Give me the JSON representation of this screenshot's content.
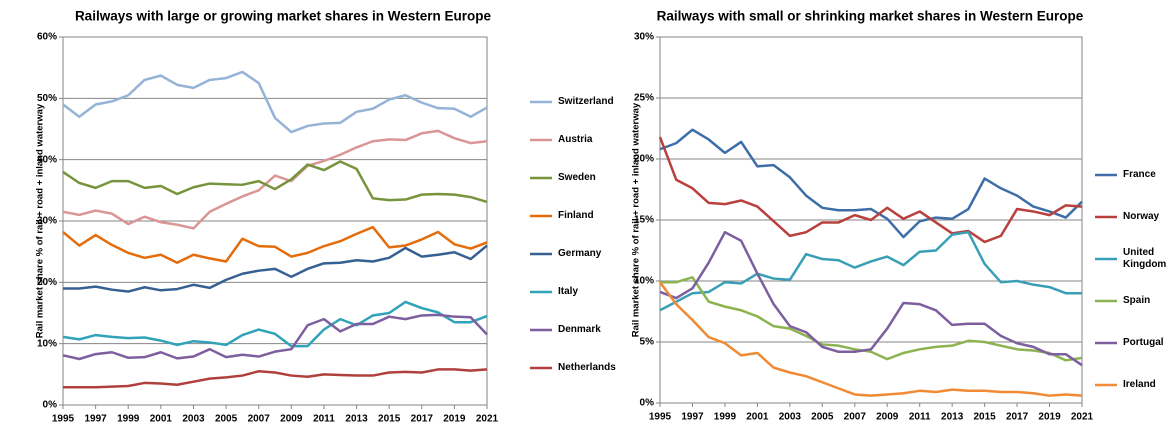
{
  "chart_data": [
    {
      "type": "line",
      "title": "Railways with large or growing market shares in Western Europe",
      "y_label": "Rail market share % of rail + road + inland waterway",
      "x": [
        1995,
        1996,
        1997,
        1998,
        1999,
        2000,
        2001,
        2002,
        2003,
        2004,
        2005,
        2006,
        2007,
        2008,
        2009,
        2010,
        2011,
        2012,
        2013,
        2014,
        2015,
        2016,
        2017,
        2018,
        2019,
        2020,
        2021
      ],
      "xlim": [
        1995,
        2021
      ],
      "xticks": [
        1995,
        1997,
        1999,
        2001,
        2003,
        2005,
        2007,
        2009,
        2011,
        2013,
        2015,
        2017,
        2019,
        2021
      ],
      "ylim": [
        0,
        60
      ],
      "yticks": [
        {
          "value": 0,
          "label": "0%"
        },
        {
          "value": 10,
          "label": "10%"
        },
        {
          "value": 20,
          "label": "20%"
        },
        {
          "value": 30,
          "label": "30%"
        },
        {
          "value": 40,
          "label": "40%"
        },
        {
          "value": 50,
          "label": "50%"
        },
        {
          "value": 60,
          "label": "60%"
        }
      ],
      "grid": true,
      "legend": "right",
      "series": [
        {
          "name": "Switzerland",
          "color": "#95b3d7",
          "values": [
            49,
            47,
            49,
            49.5,
            50.5,
            53,
            53.7,
            52.2,
            51.7,
            53,
            53.3,
            54.3,
            52.5,
            46.8,
            44.5,
            45.5,
            45.9,
            46,
            47.8,
            48.3,
            49.8,
            50.5,
            49.3,
            48.4,
            48.3,
            47,
            48.5
          ]
        },
        {
          "name": "Austria",
          "color": "#d99694",
          "values": [
            31.5,
            31,
            31.7,
            31.2,
            29.5,
            30.7,
            29.8,
            29.4,
            28.8,
            31.5,
            32.8,
            34,
            35,
            37.4,
            36.5,
            39,
            39.8,
            40.8,
            42,
            43,
            43.3,
            43.2,
            44.3,
            44.7,
            43.5,
            42.7,
            43
          ]
        },
        {
          "name": "Sweden",
          "color": "#77933c",
          "values": [
            38,
            36.2,
            35.4,
            36.5,
            36.5,
            35.4,
            35.7,
            34.4,
            35.5,
            36.1,
            36,
            35.9,
            36.5,
            35.2,
            36.8,
            39.2,
            38.3,
            39.7,
            38.5,
            33.7,
            33.4,
            33.5,
            34.3,
            34.4,
            34.3,
            33.9,
            33.1
          ]
        },
        {
          "name": "Finland",
          "color": "#e46c0a",
          "values": [
            28.2,
            26,
            27.7,
            26.1,
            24.8,
            24,
            24.5,
            23.2,
            24.5,
            23.9,
            23.4,
            27.1,
            25.9,
            25.8,
            24.2,
            24.8,
            25.9,
            26.7,
            27.9,
            29,
            25.7,
            26,
            27,
            28.2,
            26.2,
            25.5,
            26.5
          ]
        },
        {
          "name": "Germany",
          "color": "#376092",
          "values": [
            19,
            19,
            19.3,
            18.8,
            18.5,
            19.2,
            18.7,
            18.9,
            19.6,
            19.1,
            20.4,
            21.4,
            21.9,
            22.2,
            20.9,
            22.2,
            23.1,
            23.2,
            23.6,
            23.4,
            24,
            25.6,
            24.2,
            24.5,
            24.9,
            23.8,
            26
          ]
        },
        {
          "name": "Italy",
          "color": "#31a3b8",
          "values": [
            11.1,
            10.7,
            11.4,
            11.1,
            10.9,
            11,
            10.5,
            9.8,
            10.4,
            10.2,
            9.8,
            11.4,
            12.3,
            11.6,
            9.6,
            9.6,
            12.3,
            14,
            13,
            14.6,
            15,
            16.8,
            15.8,
            15.1,
            13.5,
            13.5,
            14.5
          ]
        },
        {
          "name": "Denmark",
          "color": "#7d5fa0",
          "values": [
            8.1,
            7.5,
            8.3,
            8.6,
            7.7,
            7.8,
            8.6,
            7.6,
            7.9,
            9.1,
            7.8,
            8.2,
            7.9,
            8.7,
            9.1,
            13,
            14,
            12,
            13.2,
            13.2,
            14.4,
            14,
            14.6,
            14.7,
            14.4,
            14.3,
            11.5
          ]
        },
        {
          "name": "Netherlands",
          "color": "#b0403d",
          "values": [
            2.9,
            2.9,
            2.9,
            3,
            3.1,
            3.6,
            3.5,
            3.3,
            3.8,
            4.3,
            4.5,
            4.8,
            5.5,
            5.3,
            4.8,
            4.6,
            5,
            4.9,
            4.8,
            4.8,
            5.3,
            5.4,
            5.3,
            5.8,
            5.8,
            5.6,
            5.8
          ]
        }
      ]
    },
    {
      "type": "line",
      "title": "Railways with small or shrinking market shares in Western Europe",
      "y_label": "Rail market share % of rail + road + inland waterway",
      "x": [
        1995,
        1996,
        1997,
        1998,
        1999,
        2000,
        2001,
        2002,
        2003,
        2004,
        2005,
        2006,
        2007,
        2008,
        2009,
        2010,
        2011,
        2012,
        2013,
        2014,
        2015,
        2016,
        2017,
        2018,
        2019,
        2020,
        2021
      ],
      "xlim": [
        1995,
        2021
      ],
      "xticks": [
        1995,
        1997,
        1999,
        2001,
        2003,
        2005,
        2007,
        2009,
        2011,
        2013,
        2015,
        2017,
        2019,
        2021
      ],
      "ylim": [
        0,
        30
      ],
      "yticks": [
        {
          "value": 0,
          "label": "0%"
        },
        {
          "value": 5,
          "label": "5%"
        },
        {
          "value": 10,
          "label": "10%"
        },
        {
          "value": 15,
          "label": "15%"
        },
        {
          "value": 20,
          "label": "20%"
        },
        {
          "value": 25,
          "label": "25%"
        },
        {
          "value": 30,
          "label": "30%"
        }
      ],
      "grid": true,
      "legend": "right",
      "series": [
        {
          "name": "France",
          "color": "#3d6ea8",
          "values": [
            20.8,
            21.3,
            22.4,
            21.6,
            20.5,
            21.4,
            19.4,
            19.5,
            18.5,
            17,
            16,
            15.8,
            15.8,
            15.9,
            15.1,
            13.6,
            14.9,
            15.2,
            15.1,
            15.9,
            18.4,
            17.6,
            17,
            16.1,
            15.7,
            15.2,
            16.5
          ]
        },
        {
          "name": "Norway",
          "color": "#b9403d",
          "values": [
            21.8,
            18.3,
            17.6,
            16.4,
            16.3,
            16.6,
            16.1,
            14.9,
            13.7,
            14,
            14.8,
            14.8,
            15.4,
            15,
            16,
            15.1,
            15.7,
            14.8,
            13.9,
            14.1,
            13.2,
            13.7,
            15.9,
            15.7,
            15.4,
            16.2,
            16.1
          ]
        },
        {
          "name": "United Kingdom",
          "color": "#3a9fb6",
          "values": [
            7.6,
            8.3,
            9,
            9.1,
            9.9,
            9.8,
            10.6,
            10.2,
            10.1,
            12.2,
            11.8,
            11.7,
            11.1,
            11.6,
            12,
            11.3,
            12.4,
            12.5,
            13.8,
            14,
            11.4,
            9.9,
            10,
            9.7,
            9.5,
            9,
            9
          ]
        },
        {
          "name": "Spain",
          "color": "#8db350",
          "values": [
            9.9,
            9.9,
            10.3,
            8.3,
            7.9,
            7.6,
            7.1,
            6.3,
            6.1,
            5.5,
            4.8,
            4.7,
            4.4,
            4.2,
            3.6,
            4.1,
            4.4,
            4.6,
            4.7,
            5.1,
            5,
            4.7,
            4.4,
            4.3,
            4.1,
            3.5,
            3.7
          ]
        },
        {
          "name": "Portugal",
          "color": "#7d5fa0",
          "values": [
            9.1,
            8.6,
            9.4,
            11.5,
            14,
            13.3,
            10.6,
            8.1,
            6.3,
            5.8,
            4.6,
            4.2,
            4.2,
            4.4,
            6.1,
            8.2,
            8.1,
            7.6,
            6.4,
            6.5,
            6.5,
            5.5,
            4.9,
            4.6,
            4,
            4,
            3.1
          ]
        },
        {
          "name": "Ireland",
          "color": "#f08a34",
          "values": [
            9.9,
            8.1,
            6.8,
            5.4,
            4.9,
            3.9,
            4.1,
            2.9,
            2.5,
            2.2,
            1.7,
            1.2,
            0.7,
            0.6,
            0.7,
            0.8,
            1,
            0.9,
            1.1,
            1,
            1,
            0.9,
            0.9,
            0.8,
            0.6,
            0.7,
            0.6
          ]
        }
      ]
    }
  ]
}
